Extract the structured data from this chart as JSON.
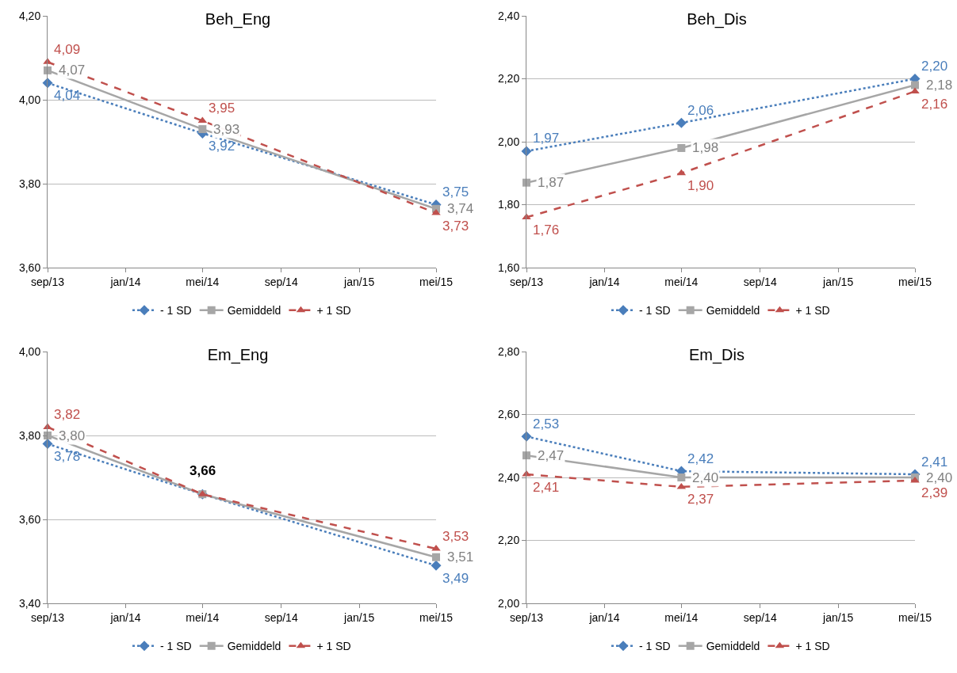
{
  "chart_data": [
    {
      "type": "line",
      "title": "Beh_Eng",
      "x": [
        "2013-09-01",
        "2014-05-01",
        "2015-05-01"
      ],
      "xlim": [
        "2013-09-01",
        "2015-05-01"
      ],
      "xticks": [
        {
          "value": "2013-09-01",
          "label": "sep/13"
        },
        {
          "value": "2014-01-01",
          "label": "jan/14"
        },
        {
          "value": "2014-05-01",
          "label": "mei/14"
        },
        {
          "value": "2014-09-01",
          "label": "sep/14"
        },
        {
          "value": "2015-01-01",
          "label": "jan/15"
        },
        {
          "value": "2015-05-01",
          "label": "mei/15"
        }
      ],
      "ylim": [
        3.6,
        4.2
      ],
      "yticks": [
        {
          "value": 3.6,
          "label": "3,60"
        },
        {
          "value": 3.8,
          "label": "3,80"
        },
        {
          "value": 4.0,
          "label": "4,00"
        },
        {
          "value": 4.2,
          "label": "4,20"
        }
      ],
      "grid": "y",
      "legend": "bottom",
      "series": [
        {
          "name": "- 1 SD",
          "color": "#4a7ebb",
          "marker": "diamond",
          "line_style": "dotted",
          "values": [
            4.04,
            3.92,
            3.75
          ],
          "value_labels": [
            "4,04",
            "3,92",
            "3,75"
          ]
        },
        {
          "name": "Gemiddeld",
          "color": "#a6a6a6",
          "marker": "square",
          "line_style": "solid",
          "values": [
            4.07,
            3.93,
            3.74
          ],
          "value_labels": [
            "4,07",
            "3,93",
            "3,74"
          ]
        },
        {
          "name": "+ 1 SD",
          "color": "#c0504d",
          "marker": "triangle",
          "line_style": "dashed",
          "values": [
            4.09,
            3.95,
            3.73
          ],
          "value_labels": [
            "4,09",
            "3,95",
            "3,73"
          ]
        }
      ]
    },
    {
      "type": "line",
      "title": "Beh_Dis",
      "x": [
        "2013-09-01",
        "2014-05-01",
        "2015-05-01"
      ],
      "xlim": [
        "2013-09-01",
        "2015-05-01"
      ],
      "xticks": [
        {
          "value": "2013-09-01",
          "label": "sep/13"
        },
        {
          "value": "2014-01-01",
          "label": "jan/14"
        },
        {
          "value": "2014-05-01",
          "label": "mei/14"
        },
        {
          "value": "2014-09-01",
          "label": "sep/14"
        },
        {
          "value": "2015-01-01",
          "label": "jan/15"
        },
        {
          "value": "2015-05-01",
          "label": "mei/15"
        }
      ],
      "ylim": [
        1.6,
        2.4
      ],
      "yticks": [
        {
          "value": 1.6,
          "label": "1,60"
        },
        {
          "value": 1.8,
          "label": "1,80"
        },
        {
          "value": 2.0,
          "label": "2,00"
        },
        {
          "value": 2.2,
          "label": "2,20"
        },
        {
          "value": 2.4,
          "label": "2,40"
        }
      ],
      "grid": "y",
      "legend": "bottom",
      "series": [
        {
          "name": "- 1 SD",
          "color": "#4a7ebb",
          "marker": "diamond",
          "line_style": "dotted",
          "values": [
            1.97,
            2.06,
            2.2
          ],
          "value_labels": [
            "1,97",
            "2,06",
            "2,20"
          ]
        },
        {
          "name": "Gemiddeld",
          "color": "#a6a6a6",
          "marker": "square",
          "line_style": "solid",
          "values": [
            1.87,
            1.98,
            2.18
          ],
          "value_labels": [
            "1,87",
            "1,98",
            "2,18"
          ]
        },
        {
          "name": "+ 1 SD",
          "color": "#c0504d",
          "marker": "triangle",
          "line_style": "dashed",
          "values": [
            1.76,
            1.9,
            2.16
          ],
          "value_labels": [
            "1,76",
            "1,90",
            "2,16"
          ]
        }
      ]
    },
    {
      "type": "line",
      "title": "Em_Eng",
      "x": [
        "2013-09-01",
        "2014-05-01",
        "2015-05-01"
      ],
      "xlim": [
        "2013-09-01",
        "2015-05-01"
      ],
      "xticks": [
        {
          "value": "2013-09-01",
          "label": "sep/13"
        },
        {
          "value": "2014-01-01",
          "label": "jan/14"
        },
        {
          "value": "2014-05-01",
          "label": "mei/14"
        },
        {
          "value": "2014-09-01",
          "label": "sep/14"
        },
        {
          "value": "2015-01-01",
          "label": "jan/15"
        },
        {
          "value": "2015-05-01",
          "label": "mei/15"
        }
      ],
      "ylim": [
        3.4,
        4.0
      ],
      "yticks": [
        {
          "value": 3.4,
          "label": "3,40"
        },
        {
          "value": 3.6,
          "label": "3,60"
        },
        {
          "value": 3.8,
          "label": "3,80"
        },
        {
          "value": 4.0,
          "label": "4,00"
        }
      ],
      "grid": "y",
      "legend": "bottom",
      "annotations": [
        {
          "text": "3,66",
          "x": "2014-05-01",
          "y": 3.66
        }
      ],
      "series": [
        {
          "name": "- 1 SD",
          "color": "#4a7ebb",
          "marker": "diamond",
          "line_style": "dotted",
          "values": [
            3.78,
            3.66,
            3.49
          ],
          "value_labels": [
            "3,78",
            null,
            "3,49"
          ]
        },
        {
          "name": "Gemiddeld",
          "color": "#a6a6a6",
          "marker": "square",
          "line_style": "solid",
          "values": [
            3.8,
            3.66,
            3.51
          ],
          "value_labels": [
            "3,80",
            null,
            "3,51"
          ]
        },
        {
          "name": "+ 1 SD",
          "color": "#c0504d",
          "marker": "triangle",
          "line_style": "dashed",
          "values": [
            3.82,
            3.66,
            3.53
          ],
          "value_labels": [
            "3,82",
            null,
            "3,53"
          ]
        }
      ]
    },
    {
      "type": "line",
      "title": "Em_Dis",
      "x": [
        "2013-09-01",
        "2014-05-01",
        "2015-05-01"
      ],
      "xlim": [
        "2013-09-01",
        "2015-05-01"
      ],
      "xticks": [
        {
          "value": "2013-09-01",
          "label": "sep/13"
        },
        {
          "value": "2014-01-01",
          "label": "jan/14"
        },
        {
          "value": "2014-05-01",
          "label": "mei/14"
        },
        {
          "value": "2014-09-01",
          "label": "sep/14"
        },
        {
          "value": "2015-01-01",
          "label": "jan/15"
        },
        {
          "value": "2015-05-01",
          "label": "mei/15"
        }
      ],
      "ylim": [
        2.0,
        2.8
      ],
      "yticks": [
        {
          "value": 2.0,
          "label": "2,00"
        },
        {
          "value": 2.2,
          "label": "2,20"
        },
        {
          "value": 2.4,
          "label": "2,40"
        },
        {
          "value": 2.6,
          "label": "2,60"
        },
        {
          "value": 2.8,
          "label": "2,80"
        }
      ],
      "grid": "y",
      "legend": "bottom",
      "series": [
        {
          "name": "- 1 SD",
          "color": "#4a7ebb",
          "marker": "diamond",
          "line_style": "dotted",
          "values": [
            2.53,
            2.42,
            2.41
          ],
          "value_labels": [
            "2,53",
            "2,42",
            "2,41"
          ]
        },
        {
          "name": "Gemiddeld",
          "color": "#a6a6a6",
          "marker": "square",
          "line_style": "solid",
          "values": [
            2.47,
            2.4,
            2.4
          ],
          "value_labels": [
            "2,47",
            "2,40",
            "2,40"
          ]
        },
        {
          "name": "+ 1 SD",
          "color": "#c0504d",
          "marker": "triangle",
          "line_style": "dashed",
          "values": [
            2.41,
            2.37,
            2.39
          ],
          "value_labels": [
            "2,41",
            "2,37",
            "2,39"
          ]
        }
      ]
    }
  ]
}
